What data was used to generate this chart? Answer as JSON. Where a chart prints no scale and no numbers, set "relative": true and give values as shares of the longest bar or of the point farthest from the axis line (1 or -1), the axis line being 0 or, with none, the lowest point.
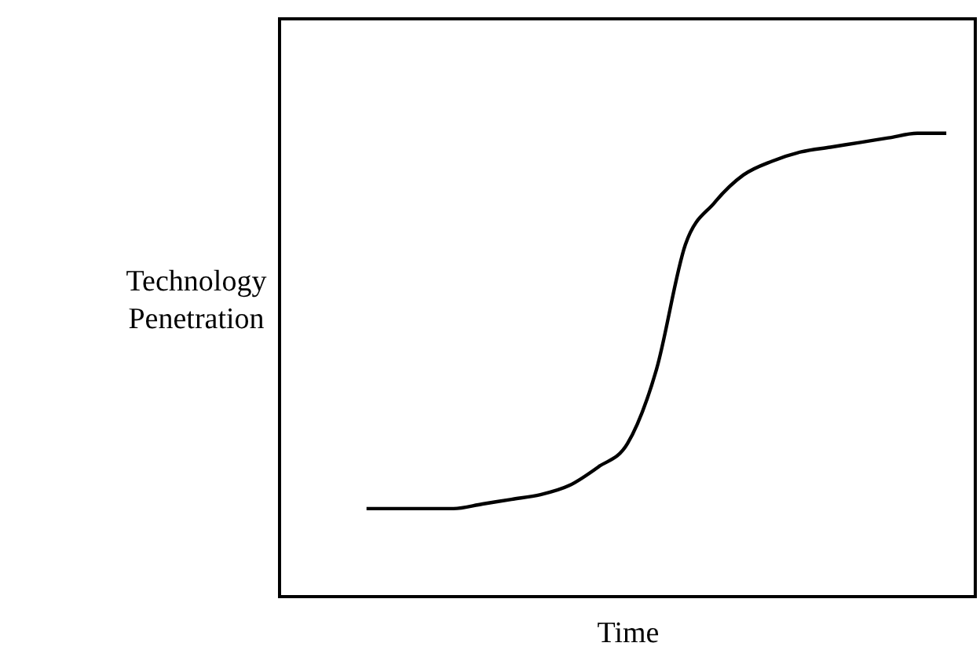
{
  "chart_data": {
    "type": "line",
    "relative": true,
    "xlabel": "Time",
    "ylabel": "Technology\nPenetration",
    "color": "#000000",
    "categories": [
      null,
      null,
      null,
      null,
      null,
      null,
      null,
      null,
      null,
      null,
      null,
      null,
      null,
      null,
      null,
      null,
      null,
      null,
      null,
      null,
      null,
      null,
      null,
      null,
      null
    ],
    "values": [
      null,
      null,
      null,
      0.19,
      0.19,
      0.19,
      0.19,
      0.2,
      0.21,
      0.22,
      0.24,
      0.28,
      0.33,
      0.49,
      0.76,
      0.85,
      0.91,
      0.94,
      0.96,
      0.97,
      0.98,
      0.99,
      1.0,
      1.0,
      null
    ]
  }
}
